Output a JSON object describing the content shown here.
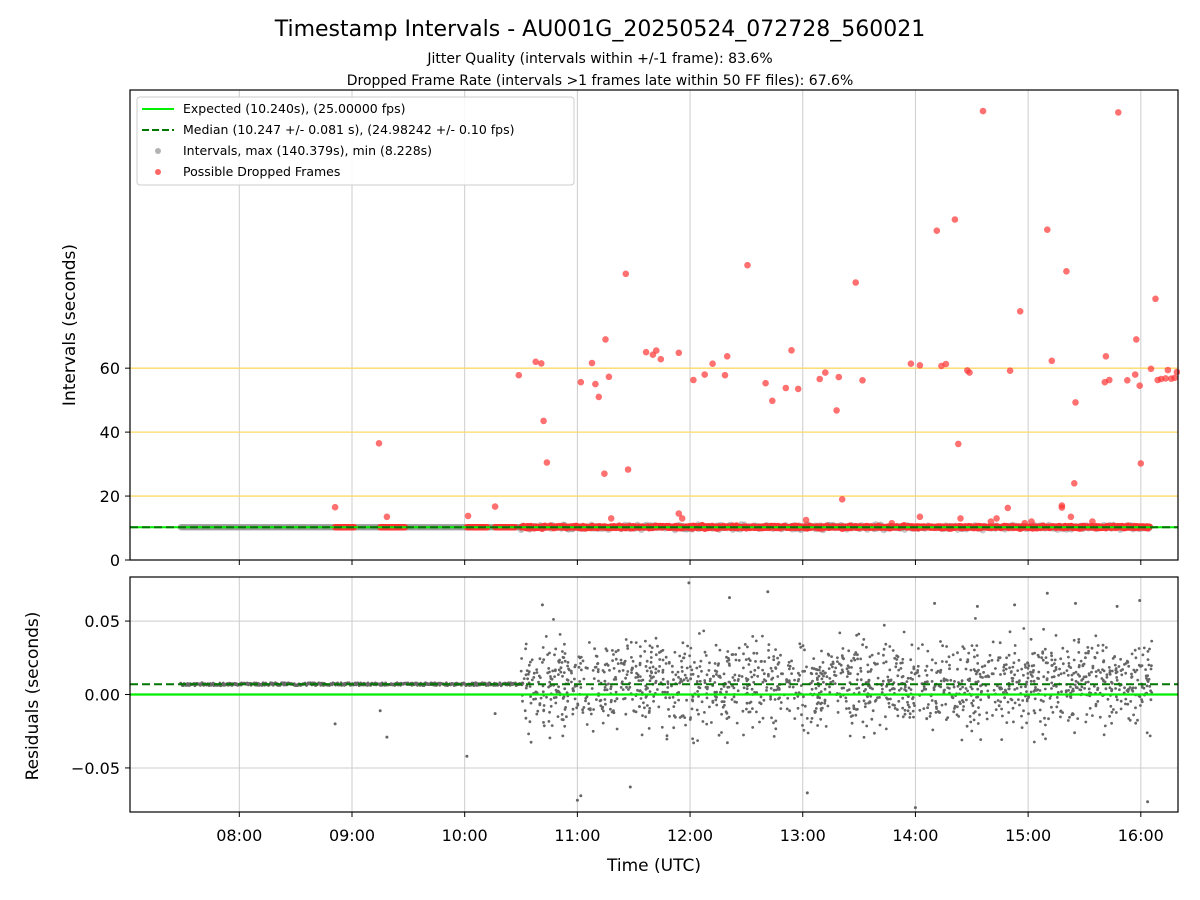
{
  "chart_data": [
    {
      "type": "scatter",
      "title": "Timestamp Intervals - AU001G_20250524_072728_560021",
      "subtitle_lines": [
        "Jitter Quality (intervals within +/-1 frame): 83.6%",
        "Dropped Frame Rate (intervals >1 frames late within 50 FF files): 67.6%"
      ],
      "ylabel": "Intervals (seconds)",
      "ylim": [
        0,
        147
      ],
      "y_ticks": [
        0,
        20,
        40,
        60
      ],
      "y_tick_labels": [
        "0",
        "20",
        "40",
        "60"
      ],
      "xlim_hours": [
        7.03,
        16.33
      ],
      "x_ticks_hours": [
        8,
        9,
        10,
        11,
        12,
        13,
        14,
        15,
        16
      ],
      "x_tick_labels": [
        "08:00",
        "09:00",
        "10:00",
        "11:00",
        "12:00",
        "13:00",
        "14:00",
        "15:00",
        "16:00"
      ],
      "threshold_lines": [
        20,
        40,
        60
      ],
      "threshold_color": "#ffd966",
      "grid": "vertical",
      "legend_position": "top-left",
      "legend": [
        "Expected (10.240s), (25.00000 fps)",
        "Median (10.247 +/- 0.081 s), (24.98242 +/- 0.10 fps)",
        "Intervals, max (140.379s), min (8.228s)",
        "Possible Dropped Frames"
      ],
      "expected_interval": 10.24,
      "median_interval": 10.247,
      "expected_color": "#00ee00",
      "median_color": "#007700",
      "interval_color": "#999999",
      "dropped_color": "#ff3333",
      "dropped_frames": [
        {
          "t": 8.85,
          "y": 16.5
        },
        {
          "t": 9.24,
          "y": 36.5
        },
        {
          "t": 9.31,
          "y": 13.5
        },
        {
          "t": 10.03,
          "y": 13.8
        },
        {
          "t": 10.27,
          "y": 16.7
        },
        {
          "t": 10.48,
          "y": 57.8
        },
        {
          "t": 10.63,
          "y": 62.0
        },
        {
          "t": 10.68,
          "y": 61.5
        },
        {
          "t": 10.7,
          "y": 43.5
        },
        {
          "t": 10.73,
          "y": 30.5
        },
        {
          "t": 11.03,
          "y": 55.6
        },
        {
          "t": 11.13,
          "y": 61.6
        },
        {
          "t": 11.16,
          "y": 55.0
        },
        {
          "t": 11.19,
          "y": 51.0
        },
        {
          "t": 11.24,
          "y": 27.0
        },
        {
          "t": 11.25,
          "y": 69.0
        },
        {
          "t": 11.28,
          "y": 57.3
        },
        {
          "t": 11.3,
          "y": 13.0
        },
        {
          "t": 11.43,
          "y": 89.5
        },
        {
          "t": 11.45,
          "y": 28.3
        },
        {
          "t": 11.61,
          "y": 65.0
        },
        {
          "t": 11.67,
          "y": 64.2
        },
        {
          "t": 11.7,
          "y": 65.5
        },
        {
          "t": 11.74,
          "y": 62.8
        },
        {
          "t": 11.9,
          "y": 64.8
        },
        {
          "t": 11.9,
          "y": 14.5
        },
        {
          "t": 11.93,
          "y": 13.0
        },
        {
          "t": 12.03,
          "y": 56.3
        },
        {
          "t": 12.13,
          "y": 58.0
        },
        {
          "t": 12.2,
          "y": 61.4
        },
        {
          "t": 12.31,
          "y": 57.8
        },
        {
          "t": 12.33,
          "y": 63.7
        },
        {
          "t": 12.51,
          "y": 92.2
        },
        {
          "t": 12.67,
          "y": 55.3
        },
        {
          "t": 12.73,
          "y": 49.8
        },
        {
          "t": 12.85,
          "y": 53.8
        },
        {
          "t": 12.9,
          "y": 65.6
        },
        {
          "t": 12.96,
          "y": 53.5
        },
        {
          "t": 13.03,
          "y": 12.5
        },
        {
          "t": 13.15,
          "y": 56.6
        },
        {
          "t": 13.2,
          "y": 58.6
        },
        {
          "t": 13.3,
          "y": 46.8
        },
        {
          "t": 13.32,
          "y": 57.2
        },
        {
          "t": 13.35,
          "y": 19.0
        },
        {
          "t": 13.47,
          "y": 86.8
        },
        {
          "t": 13.53,
          "y": 56.2
        },
        {
          "t": 13.79,
          "y": 11.5
        },
        {
          "t": 13.96,
          "y": 61.4
        },
        {
          "t": 14.04,
          "y": 60.9
        },
        {
          "t": 14.04,
          "y": 13.5
        },
        {
          "t": 14.19,
          "y": 103.0
        },
        {
          "t": 14.23,
          "y": 60.7
        },
        {
          "t": 14.27,
          "y": 61.3
        },
        {
          "t": 14.35,
          "y": 106.5
        },
        {
          "t": 14.38,
          "y": 36.3
        },
        {
          "t": 14.4,
          "y": 13.0
        },
        {
          "t": 14.46,
          "y": 59.3
        },
        {
          "t": 14.48,
          "y": 58.6
        },
        {
          "t": 14.6,
          "y": 140.4
        },
        {
          "t": 14.67,
          "y": 12.0
        },
        {
          "t": 14.72,
          "y": 13.0
        },
        {
          "t": 14.84,
          "y": 59.2
        },
        {
          "t": 14.82,
          "y": 16.3
        },
        {
          "t": 14.93,
          "y": 77.8
        },
        {
          "t": 14.97,
          "y": 11.5
        },
        {
          "t": 15.03,
          "y": 12.0
        },
        {
          "t": 15.17,
          "y": 103.3
        },
        {
          "t": 15.21,
          "y": 62.3
        },
        {
          "t": 15.3,
          "y": 17.0
        },
        {
          "t": 15.3,
          "y": 16.4
        },
        {
          "t": 15.34,
          "y": 90.3
        },
        {
          "t": 15.38,
          "y": 13.5
        },
        {
          "t": 15.42,
          "y": 49.3
        },
        {
          "t": 15.41,
          "y": 24.0
        },
        {
          "t": 15.57,
          "y": 12.0
        },
        {
          "t": 15.68,
          "y": 55.6
        },
        {
          "t": 15.69,
          "y": 63.7
        },
        {
          "t": 15.72,
          "y": 56.3
        },
        {
          "t": 15.8,
          "y": 140.0
        },
        {
          "t": 15.88,
          "y": 56.2
        },
        {
          "t": 15.95,
          "y": 58.0
        },
        {
          "t": 15.96,
          "y": 69.0
        },
        {
          "t": 15.99,
          "y": 54.5
        },
        {
          "t": 16.0,
          "y": 30.2
        },
        {
          "t": 16.09,
          "y": 59.8
        },
        {
          "t": 16.13,
          "y": 81.7
        },
        {
          "t": 16.15,
          "y": 56.3
        },
        {
          "t": 16.18,
          "y": 56.6
        },
        {
          "t": 16.22,
          "y": 56.8
        },
        {
          "t": 16.24,
          "y": 59.4
        },
        {
          "t": 16.27,
          "y": 56.7
        },
        {
          "t": 16.3,
          "y": 57.0
        },
        {
          "t": 16.32,
          "y": 58.8
        }
      ],
      "dropped_band_ranges": [
        {
          "t0": 8.85,
          "t1": 9.02,
          "y": 10.25
        },
        {
          "t0": 9.25,
          "t1": 9.47,
          "y": 10.25
        },
        {
          "t0": 10.02,
          "t1": 10.2,
          "y": 10.25
        },
        {
          "t0": 10.27,
          "t1": 10.45,
          "y": 10.25
        },
        {
          "t0": 10.5,
          "t1": 16.08,
          "y": 10.3
        }
      ]
    },
    {
      "type": "scatter",
      "ylabel": "Residuals (seconds)",
      "xlabel": "Time (UTC)",
      "ylim": [
        -0.08,
        0.08
      ],
      "y_ticks": [
        0.05,
        0.0,
        -0.05
      ],
      "y_tick_labels": [
        "0.05",
        "0.00",
        "−0.05"
      ],
      "xlim_hours": [
        7.03,
        16.33
      ],
      "x_ticks_hours": [
        8,
        9,
        10,
        11,
        12,
        13,
        14,
        15,
        16
      ],
      "x_tick_labels": [
        "08:00",
        "09:00",
        "10:00",
        "11:00",
        "12:00",
        "13:00",
        "14:00",
        "15:00",
        "16:00"
      ],
      "grid": "both",
      "expected_residual": 0.0,
      "median_residual": 0.007,
      "point_color": "#666666",
      "outliers": [
        {
          "t": 8.85,
          "y": -0.02
        },
        {
          "t": 9.25,
          "y": -0.011
        },
        {
          "t": 9.31,
          "y": -0.029
        },
        {
          "t": 10.02,
          "y": -0.042
        },
        {
          "t": 10.27,
          "y": -0.013
        },
        {
          "t": 10.69,
          "y": 0.061
        },
        {
          "t": 11.0,
          "y": -0.072
        },
        {
          "t": 11.03,
          "y": -0.069
        },
        {
          "t": 11.47,
          "y": -0.063
        },
        {
          "t": 11.99,
          "y": 0.076
        },
        {
          "t": 12.35,
          "y": 0.066
        },
        {
          "t": 12.69,
          "y": 0.07
        },
        {
          "t": 13.04,
          "y": -0.067
        },
        {
          "t": 14.0,
          "y": -0.077
        },
        {
          "t": 14.17,
          "y": 0.062
        },
        {
          "t": 14.55,
          "y": 0.06
        },
        {
          "t": 14.88,
          "y": 0.061
        },
        {
          "t": 15.17,
          "y": 0.069
        },
        {
          "t": 15.42,
          "y": 0.062
        },
        {
          "t": 15.79,
          "y": 0.06
        },
        {
          "t": 15.99,
          "y": 0.064
        },
        {
          "t": 16.06,
          "y": -0.073
        }
      ]
    }
  ]
}
